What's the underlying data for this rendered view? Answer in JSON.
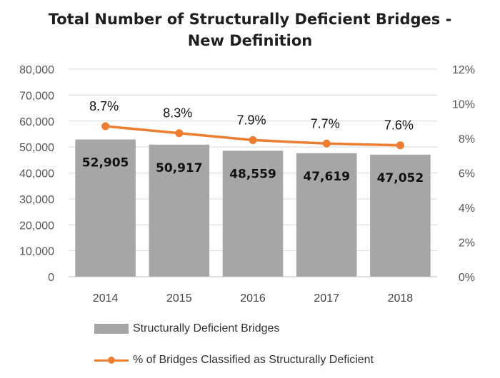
{
  "chart_data": {
    "type": "bar",
    "title_line1": "Total Number of Structurally Deficient Bridges -",
    "title_line2": "New Definition",
    "categories": [
      "2014",
      "2015",
      "2016",
      "2017",
      "2018"
    ],
    "series": [
      {
        "name": "Structurally Deficient Bridges",
        "type": "bar",
        "axis": "left",
        "values": [
          52905,
          50917,
          48559,
          47619,
          47052
        ],
        "labels": [
          "52,905",
          "50,917",
          "48,559",
          "47,619",
          "47,052"
        ],
        "color": "#a6a6a6"
      },
      {
        "name": "% of Bridges Classified as Structurally Deficient",
        "type": "line",
        "axis": "right",
        "values": [
          8.7,
          8.3,
          7.9,
          7.7,
          7.6
        ],
        "labels": [
          "8.7%",
          "8.3%",
          "7.9%",
          "7.7%",
          "7.6%"
        ],
        "color": "#ed7d31"
      }
    ],
    "y_left": {
      "min": 0,
      "max": 80000,
      "ticks": [
        "0",
        "10,000",
        "20,000",
        "30,000",
        "40,000",
        "50,000",
        "60,000",
        "70,000",
        "80,000"
      ]
    },
    "y_right": {
      "min": 0,
      "max": 12,
      "ticks": [
        "0%",
        "2%",
        "4%",
        "6%",
        "8%",
        "10%",
        "12%"
      ]
    },
    "grid": true,
    "legend_position": "bottom-left"
  }
}
